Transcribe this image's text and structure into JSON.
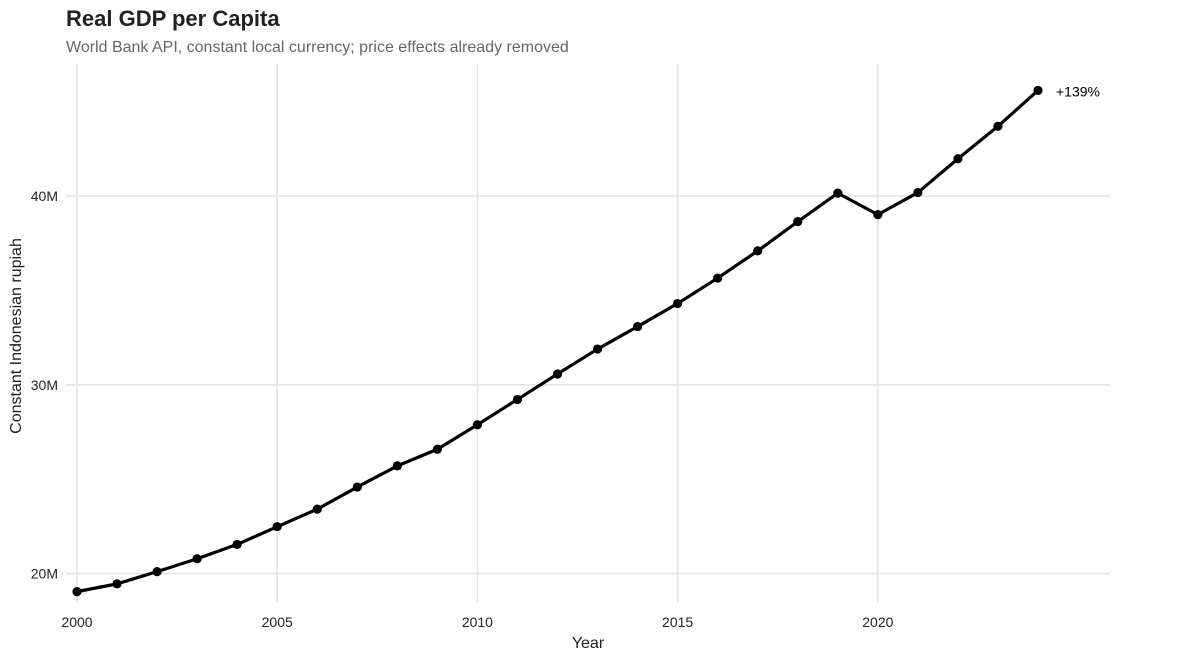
{
  "chart_data": {
    "type": "line",
    "title": "Real GDP per Capita",
    "subtitle": "World Bank API, constant local currency; price effects already removed",
    "xlabel": "Year",
    "ylabel": "Constant Indonesian rupiah",
    "xlim": [
      2000,
      2025.6
    ],
    "ylim": [
      18500000,
      47000000
    ],
    "x_ticks": [
      2000,
      2005,
      2010,
      2015,
      2020
    ],
    "y_ticks": [
      20000000,
      30000000,
      40000000
    ],
    "y_tick_labels": [
      "20M",
      "30M",
      "40M"
    ],
    "grid": true,
    "legend": "none",
    "line_color": "#000000",
    "x": [
      2000,
      2001,
      2002,
      2003,
      2004,
      2005,
      2006,
      2007,
      2008,
      2009,
      2010,
      2011,
      2012,
      2013,
      2014,
      2015,
      2016,
      2017,
      2018,
      2019,
      2020,
      2021,
      2022,
      2023,
      2024
    ],
    "series": [
      {
        "values": [
          19050000,
          19460000,
          20110000,
          20790000,
          21550000,
          22490000,
          23420000,
          24590000,
          25710000,
          26590000,
          27890000,
          29230000,
          30580000,
          31900000,
          33090000,
          34310000,
          35660000,
          37100000,
          38650000,
          40160000,
          39020000,
          40190000,
          41980000,
          43700000,
          45600000
        ]
      }
    ],
    "annotations": [
      {
        "x": 2024,
        "y": 45600000,
        "text": "+139%"
      }
    ]
  }
}
